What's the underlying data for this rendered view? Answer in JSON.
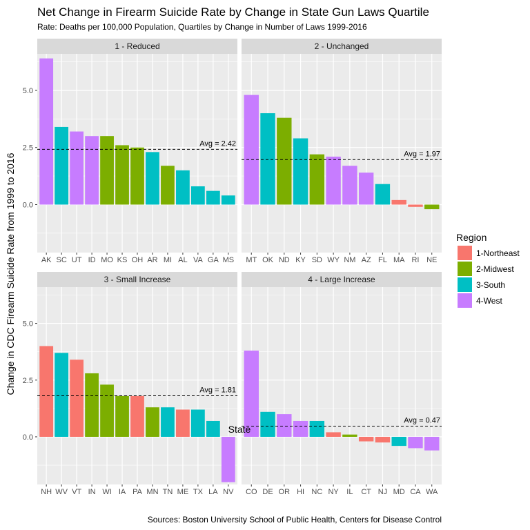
{
  "chart_data": {
    "type": "bar",
    "title": "Net Change in Firearm Suicide Rate by Change in State Gun Laws Quartile",
    "subtitle": "Rate: Deaths per 100,000 Population, Quartiles by Change in Number of Laws 1999-2016",
    "xlabel": "State",
    "ylabel": "Change in CDC Firearm Suicide Rate from 1999 to 2016",
    "caption": "Sources: Boston University School of Public Health, Centers for Disease Control",
    "ylim": [
      -2.1,
      6.6
    ],
    "yticks": [
      {
        "value": 0,
        "label": "0.0"
      },
      {
        "value": 2.5,
        "label": "2.5"
      },
      {
        "value": 5,
        "label": "5.0"
      }
    ],
    "avg_prefix": "Avg =",
    "legend": {
      "title": "Region",
      "entries": [
        {
          "key": "1-Northeast",
          "label": "1-Northeast",
          "color": "#F8766D"
        },
        {
          "key": "2-Midwest",
          "label": "2-Midwest",
          "color": "#7CAE00"
        },
        {
          "key": "3-South",
          "label": "3-South",
          "color": "#00BFC4"
        },
        {
          "key": "4-West",
          "label": "4-West",
          "color": "#C77CFF"
        }
      ]
    },
    "panels": [
      {
        "label": "1 - Reduced",
        "avg": 2.42,
        "avg_text": "2.42",
        "bars": [
          {
            "state": "AK",
            "value": 6.4,
            "region": "4-West"
          },
          {
            "state": "SC",
            "value": 3.4,
            "region": "3-South"
          },
          {
            "state": "UT",
            "value": 3.2,
            "region": "4-West"
          },
          {
            "state": "ID",
            "value": 3.0,
            "region": "4-West"
          },
          {
            "state": "MO",
            "value": 3.0,
            "region": "2-Midwest"
          },
          {
            "state": "KS",
            "value": 2.6,
            "region": "2-Midwest"
          },
          {
            "state": "OH",
            "value": 2.5,
            "region": "2-Midwest"
          },
          {
            "state": "AR",
            "value": 2.3,
            "region": "3-South"
          },
          {
            "state": "MI",
            "value": 1.7,
            "region": "2-Midwest"
          },
          {
            "state": "AL",
            "value": 1.5,
            "region": "3-South"
          },
          {
            "state": "VA",
            "value": 0.8,
            "region": "3-South"
          },
          {
            "state": "GA",
            "value": 0.6,
            "region": "3-South"
          },
          {
            "state": "MS",
            "value": 0.4,
            "region": "3-South"
          }
        ]
      },
      {
        "label": "2 - Unchanged",
        "avg": 1.97,
        "avg_text": "1.97",
        "bars": [
          {
            "state": "MT",
            "value": 4.8,
            "region": "4-West"
          },
          {
            "state": "OK",
            "value": 4.0,
            "region": "3-South"
          },
          {
            "state": "ND",
            "value": 3.8,
            "region": "2-Midwest"
          },
          {
            "state": "KY",
            "value": 2.9,
            "region": "3-South"
          },
          {
            "state": "SD",
            "value": 2.2,
            "region": "2-Midwest"
          },
          {
            "state": "WY",
            "value": 2.1,
            "region": "4-West"
          },
          {
            "state": "NM",
            "value": 1.7,
            "region": "4-West"
          },
          {
            "state": "AZ",
            "value": 1.4,
            "region": "4-West"
          },
          {
            "state": "FL",
            "value": 0.9,
            "region": "3-South"
          },
          {
            "state": "MA",
            "value": 0.2,
            "region": "1-Northeast"
          },
          {
            "state": "RI",
            "value": -0.1,
            "region": "1-Northeast"
          },
          {
            "state": "NE",
            "value": -0.2,
            "region": "2-Midwest"
          }
        ]
      },
      {
        "label": "3 - Small Increase",
        "avg": 1.81,
        "avg_text": "1.81",
        "bars": [
          {
            "state": "NH",
            "value": 4.0,
            "region": "1-Northeast"
          },
          {
            "state": "WV",
            "value": 3.7,
            "region": "3-South"
          },
          {
            "state": "VT",
            "value": 3.4,
            "region": "1-Northeast"
          },
          {
            "state": "IN",
            "value": 2.8,
            "region": "2-Midwest"
          },
          {
            "state": "WI",
            "value": 2.3,
            "region": "2-Midwest"
          },
          {
            "state": "IA",
            "value": 1.8,
            "region": "2-Midwest"
          },
          {
            "state": "PA",
            "value": 1.8,
            "region": "1-Northeast"
          },
          {
            "state": "MN",
            "value": 1.3,
            "region": "2-Midwest"
          },
          {
            "state": "TN",
            "value": 1.3,
            "region": "3-South"
          },
          {
            "state": "ME",
            "value": 1.2,
            "region": "1-Northeast"
          },
          {
            "state": "TX",
            "value": 1.2,
            "region": "3-South"
          },
          {
            "state": "LA",
            "value": 0.7,
            "region": "3-South"
          },
          {
            "state": "NV",
            "value": -2.0,
            "region": "4-West"
          }
        ]
      },
      {
        "label": "4 - Large Increase",
        "avg": 0.47,
        "avg_text": "0.47",
        "bars": [
          {
            "state": "CO",
            "value": 3.8,
            "region": "4-West"
          },
          {
            "state": "DE",
            "value": 1.1,
            "region": "3-South"
          },
          {
            "state": "OR",
            "value": 1.0,
            "region": "4-West"
          },
          {
            "state": "HI",
            "value": 0.7,
            "region": "4-West"
          },
          {
            "state": "NC",
            "value": 0.7,
            "region": "3-South"
          },
          {
            "state": "NY",
            "value": 0.2,
            "region": "1-Northeast"
          },
          {
            "state": "IL",
            "value": 0.1,
            "region": "2-Midwest"
          },
          {
            "state": "CT",
            "value": -0.2,
            "region": "1-Northeast"
          },
          {
            "state": "NJ",
            "value": -0.25,
            "region": "1-Northeast"
          },
          {
            "state": "MD",
            "value": -0.4,
            "region": "3-South"
          },
          {
            "state": "CA",
            "value": -0.5,
            "region": "4-West"
          },
          {
            "state": "WA",
            "value": -0.6,
            "region": "4-West"
          }
        ]
      }
    ]
  }
}
